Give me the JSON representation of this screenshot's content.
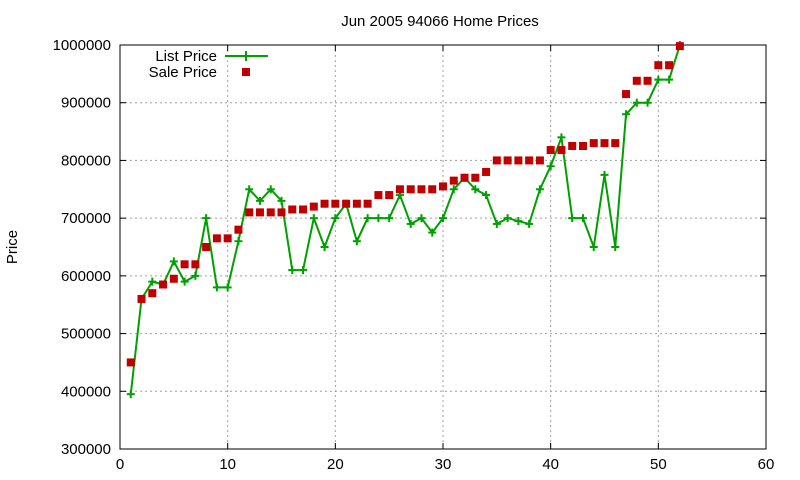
{
  "chart_data": {
    "type": "line",
    "title": "Jun 2005 94066 Home Prices",
    "xlabel": "",
    "ylabel": "Price",
    "xlim": [
      0,
      60
    ],
    "ylim": [
      300000,
      1000000
    ],
    "xticks": [
      0,
      10,
      20,
      30,
      40,
      50,
      60
    ],
    "yticks": [
      300000,
      400000,
      500000,
      600000,
      700000,
      800000,
      900000,
      1000000
    ],
    "grid": true,
    "legend_position": "top-left",
    "series": [
      {
        "name": "List Price",
        "style": "line-plus",
        "color": "#00a000",
        "x": [
          1,
          2,
          3,
          4,
          5,
          6,
          7,
          8,
          9,
          10,
          11,
          12,
          13,
          14,
          15,
          16,
          17,
          18,
          19,
          20,
          21,
          22,
          23,
          24,
          25,
          26,
          27,
          28,
          29,
          30,
          31,
          32,
          33,
          34,
          35,
          36,
          37,
          38,
          39,
          40,
          41,
          42,
          43,
          44,
          45,
          46,
          47,
          48,
          49,
          50,
          51,
          52
        ],
        "y": [
          395000,
          560000,
          590000,
          585000,
          625000,
          590000,
          600000,
          700000,
          580000,
          580000,
          660000,
          750000,
          730000,
          750000,
          730000,
          610000,
          610000,
          700000,
          650000,
          700000,
          725000,
          660000,
          700000,
          700000,
          700000,
          740000,
          690000,
          700000,
          675000,
          700000,
          750000,
          770000,
          750000,
          740000,
          690000,
          700000,
          695000,
          690000,
          750000,
          790000,
          840000,
          700000,
          700000,
          650000,
          775000,
          650000,
          880000,
          900000,
          900000,
          940000,
          940000,
          1000000
        ]
      },
      {
        "name": "Sale Price",
        "style": "square-markers",
        "color": "#c00000",
        "x": [
          1,
          2,
          3,
          4,
          5,
          6,
          7,
          8,
          9,
          10,
          11,
          12,
          13,
          14,
          15,
          16,
          17,
          18,
          19,
          20,
          21,
          22,
          23,
          24,
          25,
          26,
          27,
          28,
          29,
          30,
          31,
          32,
          33,
          34,
          35,
          36,
          37,
          38,
          39,
          40,
          41,
          42,
          43,
          44,
          45,
          46,
          47,
          48,
          49,
          50,
          51,
          52
        ],
        "y": [
          450000,
          560000,
          570000,
          585000,
          595000,
          620000,
          620000,
          650000,
          665000,
          665000,
          680000,
          710000,
          710000,
          710000,
          710000,
          715000,
          715000,
          720000,
          725000,
          725000,
          725000,
          725000,
          725000,
          740000,
          740000,
          750000,
          750000,
          750000,
          750000,
          755000,
          765000,
          770000,
          770000,
          780000,
          800000,
          800000,
          800000,
          800000,
          800000,
          818000,
          818000,
          825000,
          825000,
          830000,
          830000,
          830000,
          915000,
          938000,
          938000,
          965000,
          965000,
          998000
        ]
      }
    ]
  }
}
